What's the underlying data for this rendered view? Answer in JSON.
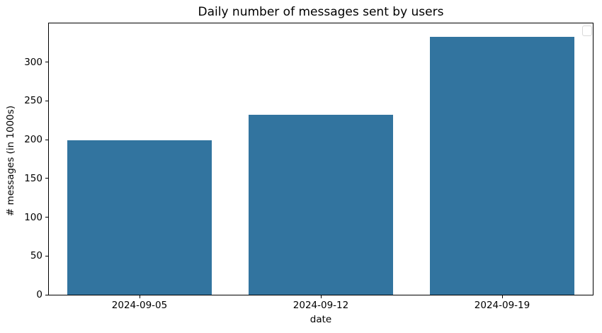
{
  "chart_data": {
    "type": "bar",
    "title": "Daily number of messages sent by users",
    "xlabel": "date",
    "ylabel": "# messages (in 1000s)",
    "categories": [
      "2024-09-05",
      "2024-09-12",
      "2024-09-19"
    ],
    "values": [
      199,
      232,
      333
    ],
    "yticks": [
      0,
      50,
      100,
      150,
      200,
      250,
      300
    ],
    "ylim": [
      0,
      350
    ],
    "bar_width_fraction": 0.8,
    "grid": false,
    "legend": {
      "present": true,
      "entries": [],
      "position": "upper-right"
    }
  },
  "colors": {
    "bar": "#32749f",
    "axis": "#000000",
    "text": "#000000",
    "legend_border": "#d9d9d9",
    "background": "#ffffff"
  }
}
